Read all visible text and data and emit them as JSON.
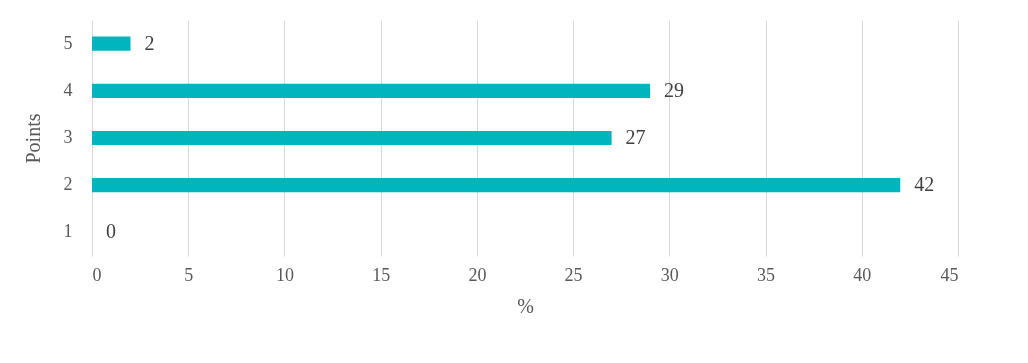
{
  "chart_data": {
    "type": "bar",
    "orientation": "horizontal",
    "categories": [
      "5",
      "4",
      "3",
      "2",
      "1"
    ],
    "values": [
      2,
      29,
      27,
      42,
      0
    ],
    "color": "#00b5bd",
    "xlabel": "%",
    "ylabel": "Points",
    "xlim": [
      0,
      45
    ],
    "xticks": [
      0,
      5,
      10,
      15,
      20,
      25,
      30,
      35,
      40,
      45
    ],
    "grid": "x",
    "data_labels": true
  }
}
